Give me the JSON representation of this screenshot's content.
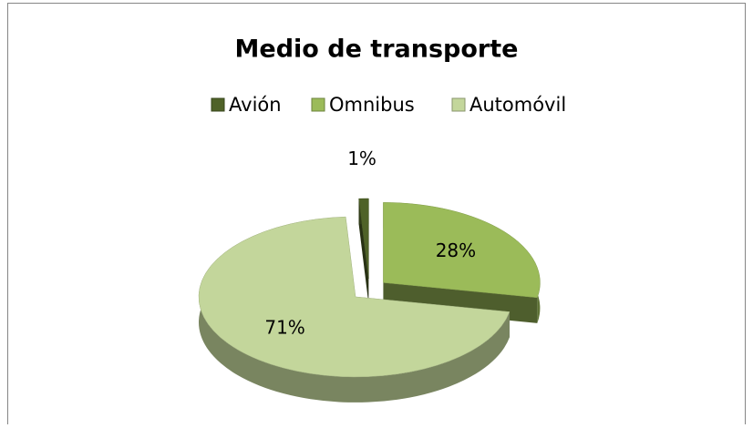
{
  "chart_data": {
    "type": "pie",
    "title": "Medio de transporte",
    "categories": [
      "Avión",
      "Omnibus",
      "Automóvil"
    ],
    "values": [
      1,
      28,
      71
    ],
    "value_labels": [
      "1%",
      "28%",
      "71%"
    ],
    "colors": [
      "#4f6228",
      "#9bbb59",
      "#c3d69b"
    ],
    "legend": "top"
  }
}
